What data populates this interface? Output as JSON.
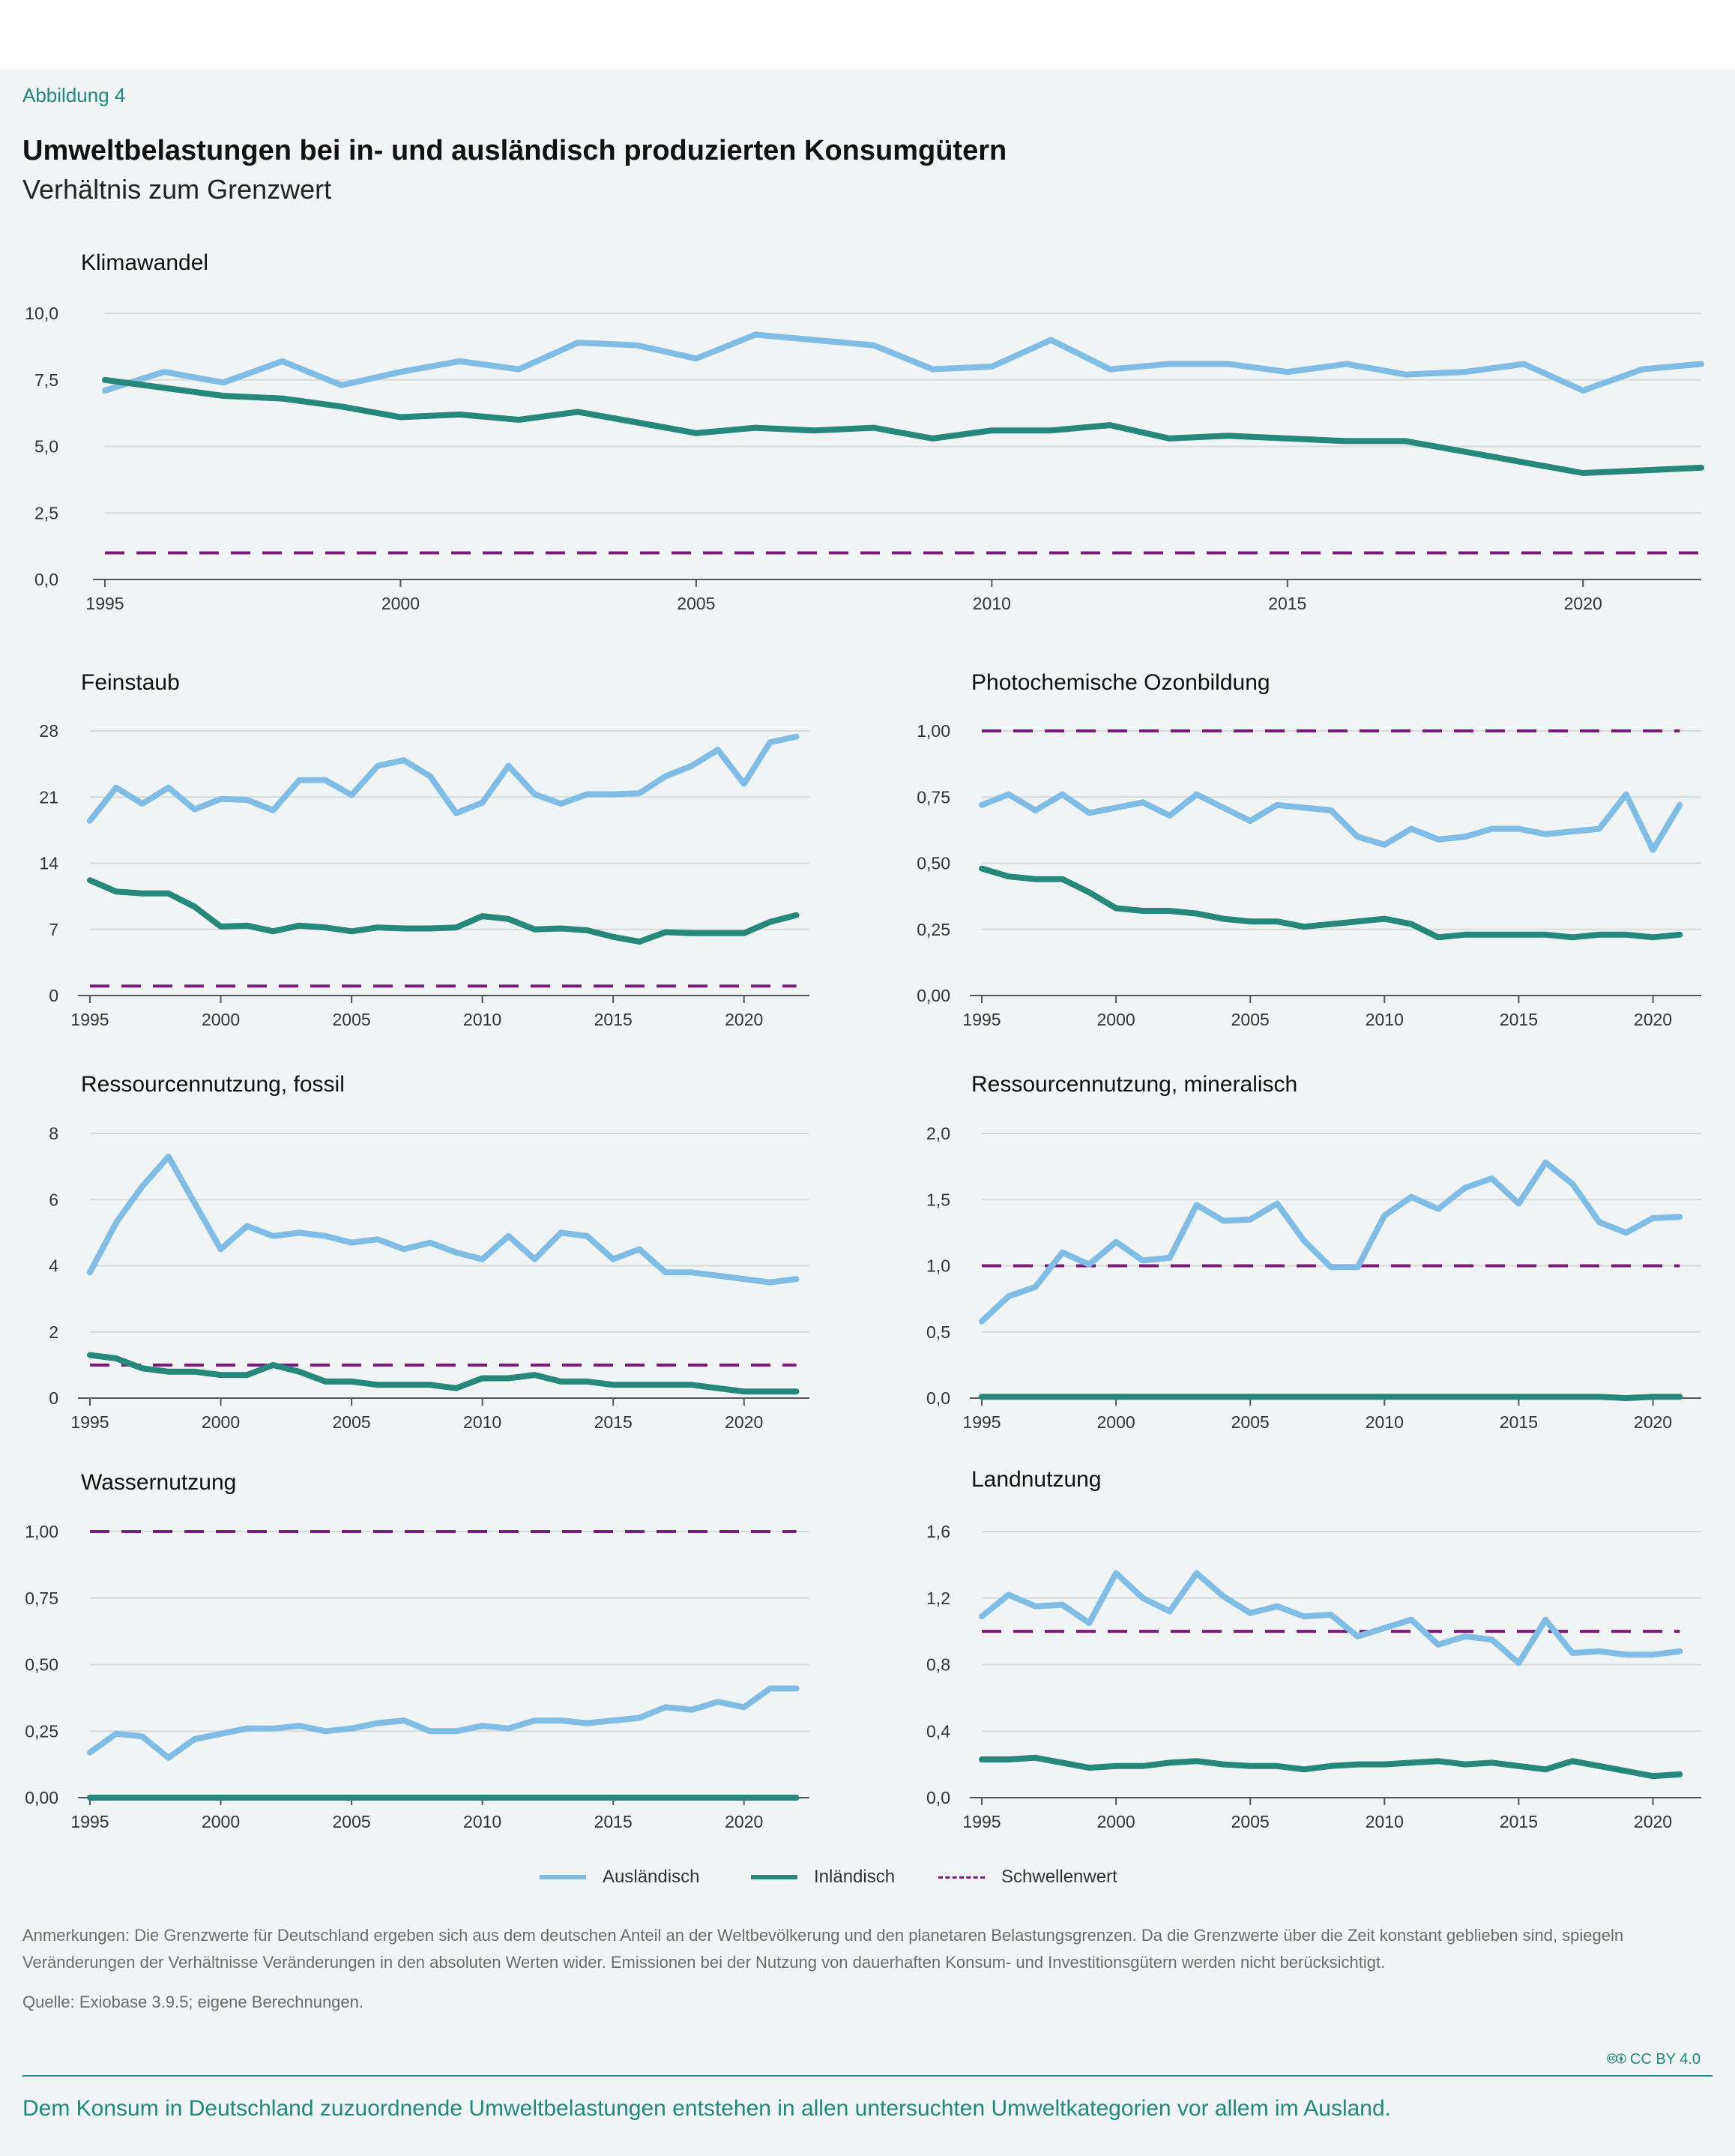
{
  "figure": {
    "label": "Abbildung 4",
    "title": "Umweltbelastungen bei in- und ausländisch produzierten Konsumgütern",
    "subtitle": "Verhältnis zum Grenzwert"
  },
  "legend": {
    "auslaendisch": "Ausländisch",
    "inlaendisch": "Inländisch",
    "schwellenwert": "Schwellenwert"
  },
  "colors": {
    "auslaendisch": "#7fbde6",
    "inlaendisch": "#25887a",
    "schwellenwert": "#7a1a7a",
    "grid": "#d5dada",
    "axis": "#555555",
    "accent": "#1d8a7a"
  },
  "notes": "Anmerkungen: Die Grenzwerte für Deutschland ergeben sich aus dem deutschen Anteil an der Weltbevölkerung und den planetaren Belastungsgrenzen. Da die Grenzwerte über die Zeit konstant geblieben sind, spiegeln Veränderungen der Verhältnisse Veränderungen in den absoluten Werten wider. Emissionen bei der Nutzung von dauerhaften Konsum- und Investitionsgütern werden nicht berücksichtigt.",
  "source": "Quelle: Exiobase 3.9.5; eigene Berechnungen.",
  "license": "CC BY 4.0",
  "footer": "Dem Konsum in Deutschland zuzuordnende Umweltbelastungen entstehen in allen untersuchten Umweltkategorien vor allem im Ausland.",
  "chart_data": [
    {
      "type": "line",
      "title": "Klimawandel",
      "x": [
        1995,
        1996,
        1997,
        1998,
        1999,
        2000,
        2001,
        2002,
        2003,
        2004,
        2005,
        2006,
        2007,
        2008,
        2009,
        2010,
        2011,
        2012,
        2013,
        2014,
        2015,
        2016,
        2017,
        2018,
        2019,
        2020,
        2021,
        2022
      ],
      "xlim": [
        1995,
        2022
      ],
      "xticks": [
        "1995",
        "2000",
        "2005",
        "2010",
        "2015",
        "2020"
      ],
      "ylim": [
        0,
        10
      ],
      "yticks": [
        "0,0",
        "2,5",
        "5,0",
        "7,5",
        "10,0"
      ],
      "grid": true,
      "threshold": 1,
      "series": [
        {
          "name": "Ausländisch",
          "values": [
            7.1,
            7.8,
            7.4,
            8.2,
            7.3,
            7.8,
            8.2,
            7.9,
            8.9,
            8.8,
            8.3,
            9.2,
            9.0,
            8.8,
            7.9,
            8.0,
            9.0,
            7.9,
            8.1,
            8.1,
            7.8,
            8.1,
            7.7,
            7.8,
            8.1,
            7.1,
            7.9,
            8.1
          ]
        },
        {
          "name": "Inländisch",
          "values": [
            7.5,
            7.2,
            6.9,
            6.8,
            6.5,
            6.1,
            6.2,
            6.0,
            6.3,
            5.9,
            5.5,
            5.7,
            5.6,
            5.7,
            5.3,
            5.6,
            5.6,
            5.8,
            5.3,
            5.4,
            5.3,
            5.2,
            5.2,
            4.8,
            4.4,
            4.0,
            4.1,
            4.2
          ]
        }
      ]
    },
    {
      "type": "line",
      "title": "Feinstaub",
      "x": [
        1995,
        1996,
        1997,
        1998,
        1999,
        2000,
        2001,
        2002,
        2003,
        2004,
        2005,
        2006,
        2007,
        2008,
        2009,
        2010,
        2011,
        2012,
        2013,
        2014,
        2015,
        2016,
        2017,
        2018,
        2019,
        2020,
        2021,
        2022
      ],
      "xlim": [
        1995,
        2022.5
      ],
      "xticks": [
        "1995",
        "2000",
        "2005",
        "2010",
        "2015",
        "2020"
      ],
      "ylim": [
        0,
        28
      ],
      "yticks": [
        "0",
        "7",
        "14",
        "21",
        "28"
      ],
      "grid": true,
      "threshold": 1,
      "series": [
        {
          "name": "Ausländisch",
          "values": [
            18.5,
            22.0,
            20.3,
            22.0,
            19.7,
            20.8,
            20.7,
            19.6,
            22.8,
            22.8,
            21.2,
            24.3,
            24.9,
            23.2,
            19.3,
            20.4,
            24.3,
            21.3,
            20.3,
            21.3,
            21.3,
            21.4,
            23.2,
            24.3,
            26.0,
            22.4,
            26.8,
            27.4
          ]
        },
        {
          "name": "Inländisch",
          "values": [
            12.2,
            11.0,
            10.8,
            10.8,
            9.4,
            7.3,
            7.4,
            6.8,
            7.4,
            7.2,
            6.8,
            7.2,
            7.1,
            7.1,
            7.2,
            8.4,
            8.1,
            7.0,
            7.1,
            6.9,
            6.2,
            5.7,
            6.7,
            6.6,
            6.6,
            6.6,
            7.8,
            8.5
          ]
        }
      ]
    },
    {
      "type": "line",
      "title": "Photochemische Ozonbildung",
      "x": [
        1995,
        1996,
        1997,
        1998,
        1999,
        2000,
        2001,
        2002,
        2003,
        2004,
        2005,
        2006,
        2007,
        2008,
        2009,
        2010,
        2011,
        2012,
        2013,
        2014,
        2015,
        2016,
        2017,
        2018,
        2019,
        2020,
        2021
      ],
      "xlim": [
        1995,
        2021.8
      ],
      "xticks": [
        "1995",
        "2000",
        "2005",
        "2010",
        "2015",
        "2020"
      ],
      "ylim": [
        0,
        1
      ],
      "yticks": [
        "0,00",
        "0,25",
        "0,50",
        "0,75",
        "1,00"
      ],
      "grid": true,
      "threshold": 1,
      "series": [
        {
          "name": "Ausländisch",
          "values": [
            0.72,
            0.76,
            0.7,
            0.76,
            0.69,
            0.71,
            0.73,
            0.68,
            0.76,
            0.71,
            0.66,
            0.72,
            0.71,
            0.7,
            0.6,
            0.57,
            0.63,
            0.59,
            0.6,
            0.63,
            0.63,
            0.61,
            0.62,
            0.63,
            0.76,
            0.55,
            0.72
          ]
        },
        {
          "name": "Inländisch",
          "values": [
            0.48,
            0.45,
            0.44,
            0.44,
            0.39,
            0.33,
            0.32,
            0.32,
            0.31,
            0.29,
            0.28,
            0.28,
            0.26,
            0.27,
            0.28,
            0.29,
            0.27,
            0.22,
            0.23,
            0.23,
            0.23,
            0.23,
            0.22,
            0.23,
            0.23,
            0.22,
            0.23
          ]
        }
      ]
    },
    {
      "type": "line",
      "title": "Ressourcennutzung, fossil",
      "x": [
        1995,
        1996,
        1997,
        1998,
        1999,
        2000,
        2001,
        2002,
        2003,
        2004,
        2005,
        2006,
        2007,
        2008,
        2009,
        2010,
        2011,
        2012,
        2013,
        2014,
        2015,
        2016,
        2017,
        2018,
        2019,
        2020,
        2021,
        2022
      ],
      "xlim": [
        1995,
        2022.5
      ],
      "xticks": [
        "1995",
        "2000",
        "2005",
        "2010",
        "2015",
        "2020"
      ],
      "ylim": [
        0,
        8
      ],
      "yticks": [
        "0",
        "2",
        "4",
        "6",
        "8"
      ],
      "grid": true,
      "threshold": 1,
      "series": [
        {
          "name": "Ausländisch",
          "values": [
            3.8,
            5.3,
            6.4,
            7.3,
            5.9,
            4.5,
            5.2,
            4.9,
            5.0,
            4.9,
            4.7,
            4.8,
            4.5,
            4.7,
            4.4,
            4.2,
            4.9,
            4.2,
            5.0,
            4.9,
            4.2,
            4.5,
            3.8,
            3.8,
            3.7,
            3.6,
            3.5,
            3.6
          ]
        },
        {
          "name": "Inländisch",
          "values": [
            1.3,
            1.2,
            0.9,
            0.8,
            0.8,
            0.7,
            0.7,
            1.0,
            0.8,
            0.5,
            0.5,
            0.4,
            0.4,
            0.4,
            0.3,
            0.6,
            0.6,
            0.7,
            0.5,
            0.5,
            0.4,
            0.4,
            0.4,
            0.4,
            0.3,
            0.2,
            0.2,
            0.2
          ]
        }
      ]
    },
    {
      "type": "line",
      "title": "Ressourcennutzung, mineralisch",
      "x": [
        1995,
        1996,
        1997,
        1998,
        1999,
        2000,
        2001,
        2002,
        2003,
        2004,
        2005,
        2006,
        2007,
        2008,
        2009,
        2010,
        2011,
        2012,
        2013,
        2014,
        2015,
        2016,
        2017,
        2018,
        2019,
        2020,
        2021
      ],
      "xlim": [
        1995,
        2021.8
      ],
      "xticks": [
        "1995",
        "2000",
        "2005",
        "2010",
        "2015",
        "2020"
      ],
      "ylim": [
        0,
        2
      ],
      "yticks": [
        "0,0",
        "0,5",
        "1,0",
        "1,5",
        "2,0"
      ],
      "grid": true,
      "threshold": 1,
      "series": [
        {
          "name": "Ausländisch",
          "values": [
            0.58,
            0.77,
            0.84,
            1.1,
            1.01,
            1.18,
            1.04,
            1.06,
            1.46,
            1.34,
            1.35,
            1.47,
            1.19,
            0.99,
            0.99,
            1.38,
            1.52,
            1.43,
            1.59,
            1.66,
            1.47,
            1.78,
            1.62,
            1.33,
            1.25,
            1.36,
            1.37
          ]
        },
        {
          "name": "Inländisch",
          "values": [
            0.01,
            0.01,
            0.01,
            0.01,
            0.01,
            0.01,
            0.01,
            0.01,
            0.01,
            0.01,
            0.01,
            0.01,
            0.01,
            0.01,
            0.01,
            0.01,
            0.01,
            0.01,
            0.01,
            0.01,
            0.01,
            0.01,
            0.01,
            0.01,
            0.0,
            0.01,
            0.01
          ]
        }
      ]
    },
    {
      "type": "line",
      "title": "Wassernutzung",
      "x": [
        1995,
        1996,
        1997,
        1998,
        1999,
        2000,
        2001,
        2002,
        2003,
        2004,
        2005,
        2006,
        2007,
        2008,
        2009,
        2010,
        2011,
        2012,
        2013,
        2014,
        2015,
        2016,
        2017,
        2018,
        2019,
        2020,
        2021,
        2022
      ],
      "xlim": [
        1995,
        2022.5
      ],
      "xticks": [
        "1995",
        "2000",
        "2005",
        "2010",
        "2015",
        "2020"
      ],
      "ylim": [
        0,
        1
      ],
      "yticks": [
        "0,00",
        "0,25",
        "0,50",
        "0,75",
        "1,00"
      ],
      "grid": true,
      "threshold": 1,
      "series": [
        {
          "name": "Ausländisch",
          "values": [
            0.17,
            0.24,
            0.23,
            0.15,
            0.22,
            0.24,
            0.26,
            0.26,
            0.27,
            0.25,
            0.26,
            0.28,
            0.29,
            0.25,
            0.25,
            0.27,
            0.26,
            0.29,
            0.29,
            0.28,
            0.29,
            0.3,
            0.34,
            0.33,
            0.36,
            0.34,
            0.41,
            0.41
          ]
        },
        {
          "name": "Inländisch",
          "values": [
            0.0,
            0.0,
            0.0,
            0.0,
            0.0,
            0.0,
            0.0,
            0.0,
            0.0,
            0.0,
            0.0,
            0.0,
            0.0,
            0.0,
            0.0,
            0.0,
            0.0,
            0.0,
            0.0,
            0.0,
            0.0,
            0.0,
            0.0,
            0.0,
            0.0,
            0.0,
            0.0,
            0.0
          ]
        }
      ]
    },
    {
      "type": "line",
      "title": "Landnutzung",
      "x": [
        1995,
        1996,
        1997,
        1998,
        1999,
        2000,
        2001,
        2002,
        2003,
        2004,
        2005,
        2006,
        2007,
        2008,
        2009,
        2010,
        2011,
        2012,
        2013,
        2014,
        2015,
        2016,
        2017,
        2018,
        2019,
        2020,
        2021
      ],
      "xlim": [
        1995,
        2021.8
      ],
      "xticks": [
        "1995",
        "2000",
        "2005",
        "2010",
        "2015",
        "2020"
      ],
      "ylim": [
        0,
        1.6
      ],
      "yticks": [
        "0,0",
        "0,4",
        "0,8",
        "1,2",
        "1,6"
      ],
      "grid": true,
      "threshold": 1,
      "series": [
        {
          "name": "Ausländisch",
          "values": [
            1.09,
            1.22,
            1.15,
            1.16,
            1.05,
            1.35,
            1.2,
            1.12,
            1.35,
            1.21,
            1.11,
            1.15,
            1.09,
            1.1,
            0.97,
            1.02,
            1.07,
            0.92,
            0.97,
            0.95,
            0.81,
            1.07,
            0.87,
            0.88,
            0.86,
            0.86,
            0.88
          ]
        },
        {
          "name": "Inländisch",
          "values": [
            0.23,
            0.23,
            0.24,
            0.21,
            0.18,
            0.19,
            0.19,
            0.21,
            0.22,
            0.2,
            0.19,
            0.19,
            0.17,
            0.19,
            0.2,
            0.2,
            0.21,
            0.22,
            0.2,
            0.21,
            0.19,
            0.17,
            0.22,
            0.19,
            0.16,
            0.13,
            0.14
          ]
        }
      ]
    }
  ]
}
